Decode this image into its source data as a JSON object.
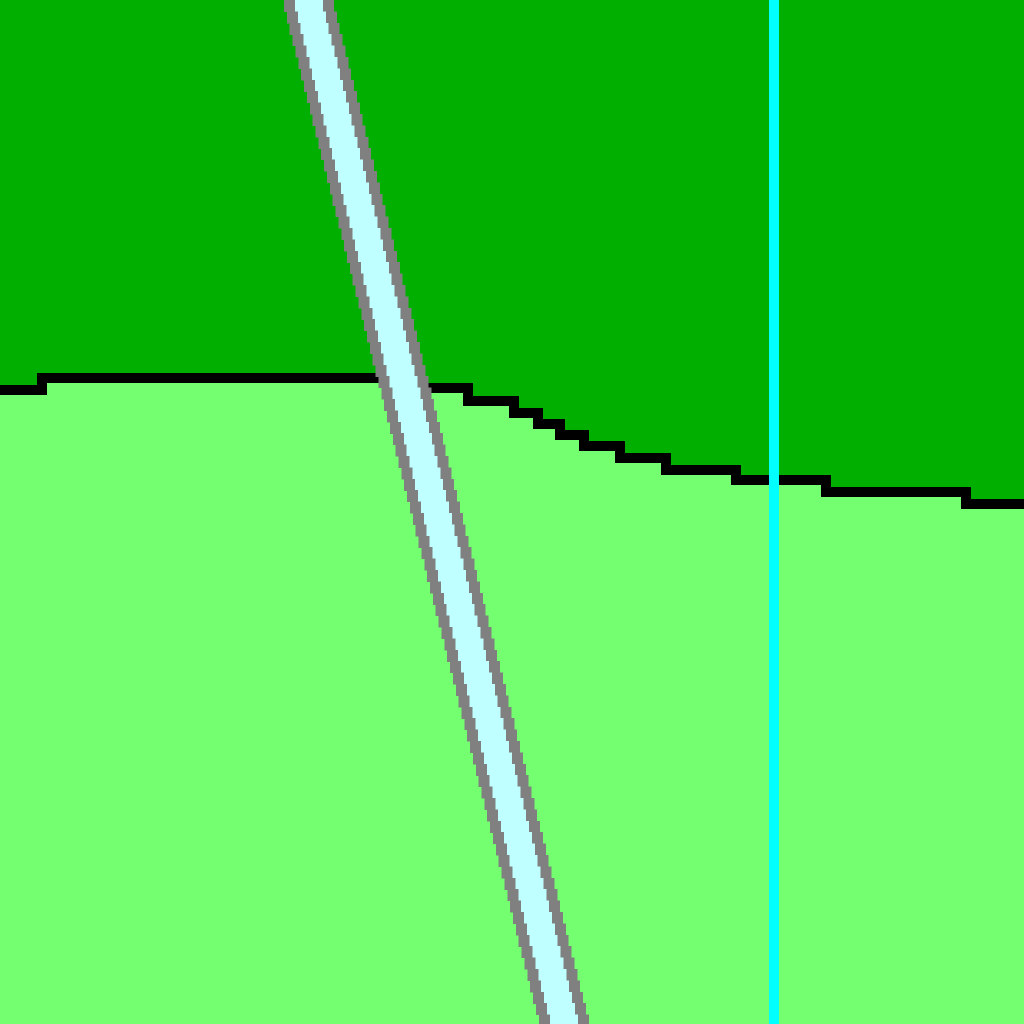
{
  "map": {
    "colors": {
      "upper_region": "#00af00",
      "lower_region": "#73ff6f",
      "boundary": "#000000",
      "river_fill": "#c0ffff",
      "river_edge": "#808080",
      "vertical_line": "#00ffff"
    },
    "features": [
      {
        "name": "upper-region",
        "kind": "area"
      },
      {
        "name": "lower-region",
        "kind": "area"
      },
      {
        "name": "region-boundary",
        "kind": "line"
      },
      {
        "name": "river",
        "kind": "line"
      },
      {
        "name": "vertical-line",
        "kind": "line"
      }
    ]
  }
}
